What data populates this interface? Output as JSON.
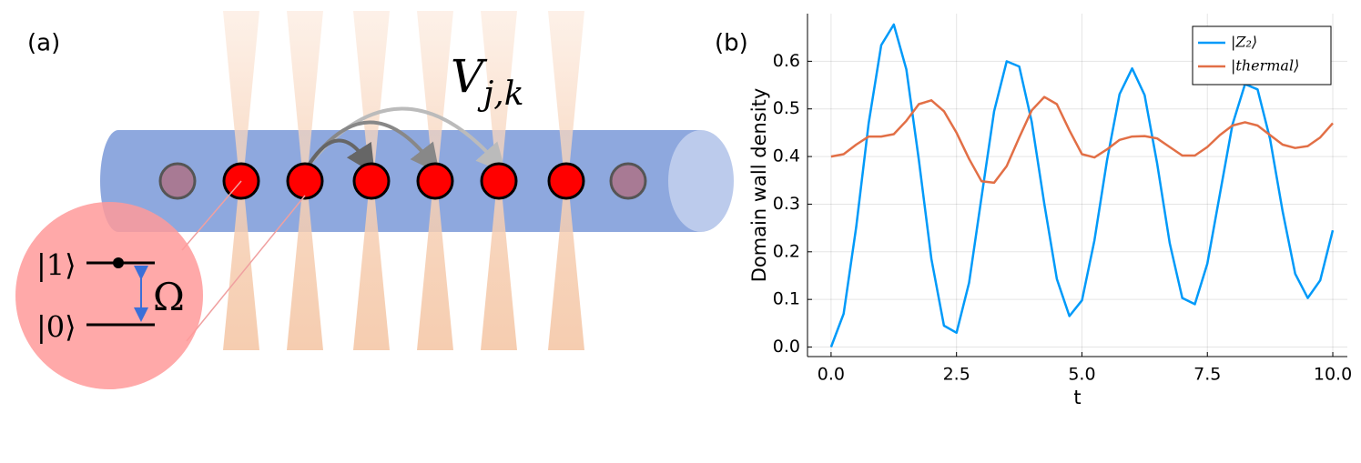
{
  "panel_a": {
    "label": "(a)",
    "upper_state": "|1⟩",
    "lower_state": "|0⟩",
    "rabi": "Ω",
    "interaction": "V",
    "interaction_subscript": "j,k"
  },
  "chart_data": {
    "type": "line",
    "panel_label": "(b)",
    "x_label": "t",
    "y_label": "Domain wall density",
    "x": [
      0,
      0.25,
      0.5,
      0.75,
      1,
      1.25,
      1.5,
      1.75,
      2,
      2.25,
      2.5,
      2.75,
      3,
      3.25,
      3.5,
      3.75,
      4,
      4.25,
      4.5,
      4.75,
      5,
      5.25,
      5.5,
      5.75,
      6,
      6.25,
      6.5,
      6.75,
      7,
      7.25,
      7.5,
      7.75,
      8,
      8.25,
      8.5,
      8.75,
      9,
      9.25,
      9.5,
      9.75,
      10
    ],
    "series": [
      {
        "name": "|Z₂⟩",
        "color": "#009af9",
        "values": [
          0,
          0.07,
          0.252,
          0.47,
          0.634,
          0.677,
          0.583,
          0.393,
          0.185,
          0.045,
          0.03,
          0.135,
          0.315,
          0.495,
          0.6,
          0.589,
          0.473,
          0.301,
          0.143,
          0.065,
          0.098,
          0.224,
          0.392,
          0.531,
          0.585,
          0.529,
          0.385,
          0.218,
          0.103,
          0.09,
          0.175,
          0.321,
          0.467,
          0.552,
          0.541,
          0.437,
          0.285,
          0.154,
          0.103,
          0.14,
          0.245
        ]
      },
      {
        "name": "|thermal⟩",
        "color": "#e26f46",
        "values": [
          0.4,
          0.405,
          0.425,
          0.442,
          0.442,
          0.447,
          0.475,
          0.51,
          0.518,
          0.495,
          0.45,
          0.395,
          0.348,
          0.345,
          0.38,
          0.44,
          0.497,
          0.525,
          0.51,
          0.455,
          0.405,
          0.398,
          0.415,
          0.435,
          0.442,
          0.443,
          0.438,
          0.42,
          0.402,
          0.402,
          0.42,
          0.445,
          0.465,
          0.472,
          0.465,
          0.445,
          0.425,
          0.418,
          0.422,
          0.44,
          0.47
        ]
      }
    ],
    "xlim": [
      -0.47,
      10.29
    ],
    "ylim": [
      -0.02,
      0.7
    ],
    "xticks": [
      {
        "value": 0,
        "label": "0.0"
      },
      2.5,
      {
        "value": 5,
        "label": "5.0"
      },
      7.5,
      {
        "value": 10,
        "label": "10.0"
      }
    ],
    "yticks": [
      {
        "value": 0,
        "label": "0.0"
      },
      0.1,
      0.2,
      0.3,
      0.4,
      0.5,
      0.6
    ],
    "grid": true,
    "legend": "upper right"
  }
}
